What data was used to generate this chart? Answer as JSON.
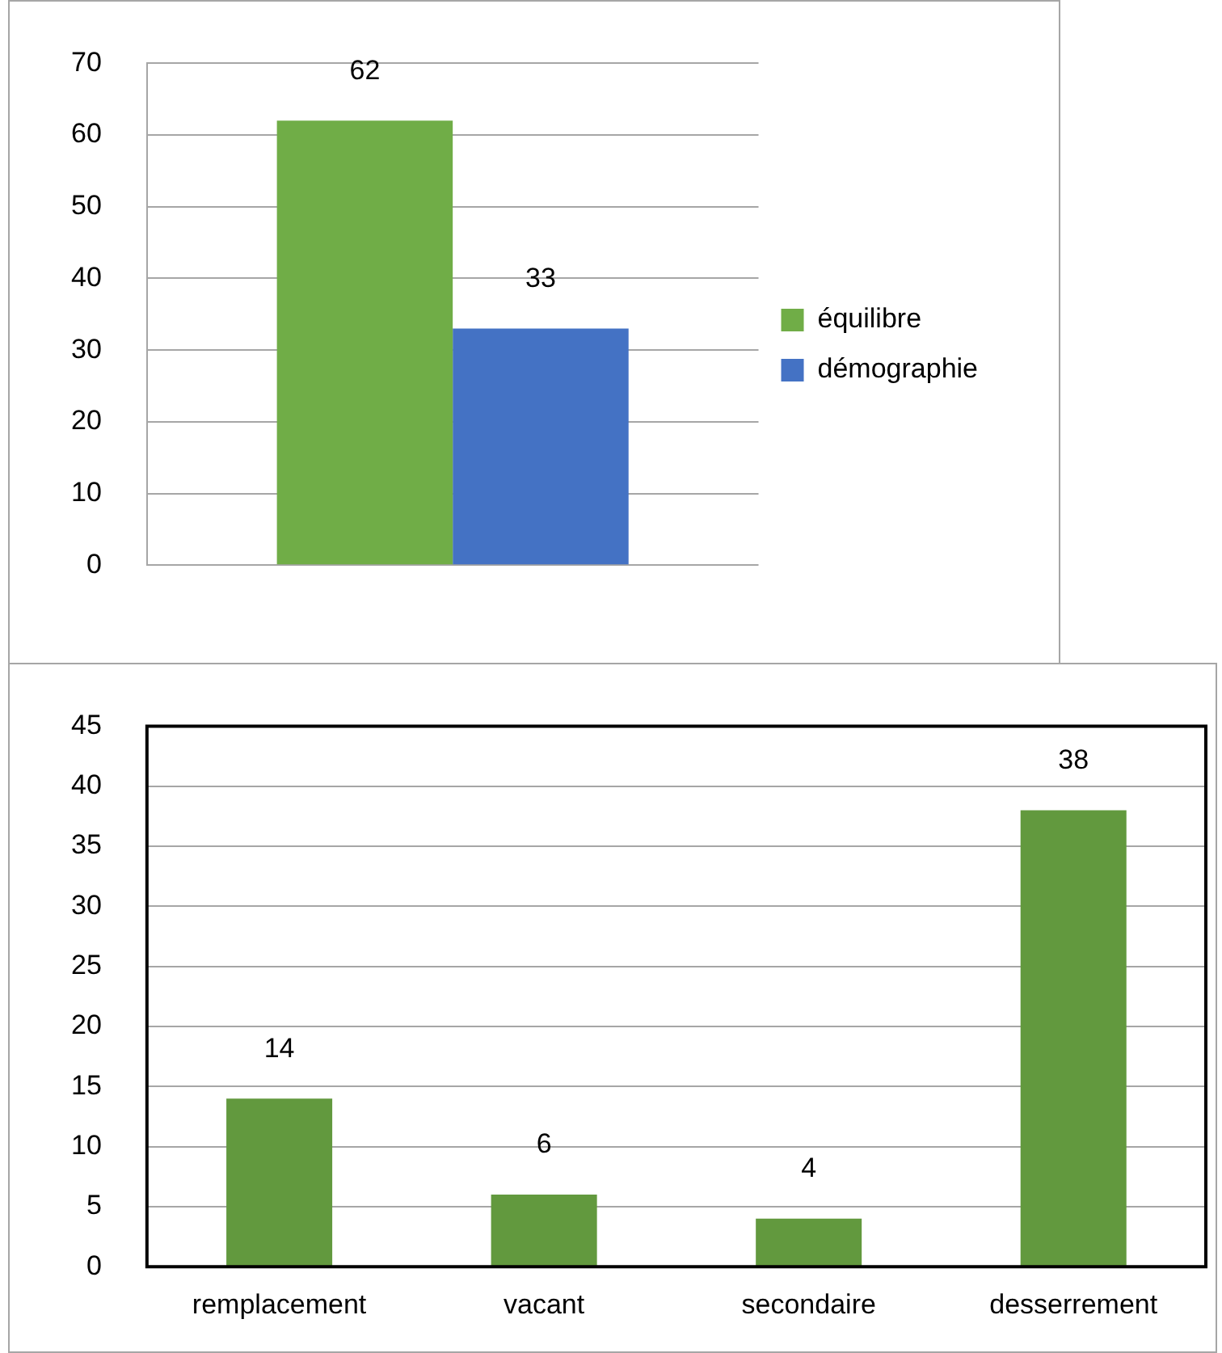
{
  "chart_data": [
    {
      "type": "bar",
      "categories": [
        null
      ],
      "series": [
        {
          "name": "équilibre",
          "color": "#70ad47",
          "values": [
            62
          ]
        },
        {
          "name": "démographie",
          "color": "#4472c4",
          "values": [
            33
          ]
        }
      ],
      "ylim": [
        0,
        70
      ],
      "yticks": [
        0,
        10,
        20,
        30,
        40,
        50,
        60,
        70
      ],
      "grid": "y",
      "legend": "right",
      "data_labels": true
    },
    {
      "type": "bar",
      "categories": [
        "remplacement",
        "vacant",
        "secondaire",
        "desserrement"
      ],
      "values": [
        14,
        6,
        4,
        38
      ],
      "color": "#62993e",
      "ylim": [
        0,
        45
      ],
      "yticks": [
        0,
        5,
        10,
        15,
        20,
        25,
        30,
        35,
        40,
        45
      ],
      "grid": "y",
      "data_labels": true
    }
  ]
}
